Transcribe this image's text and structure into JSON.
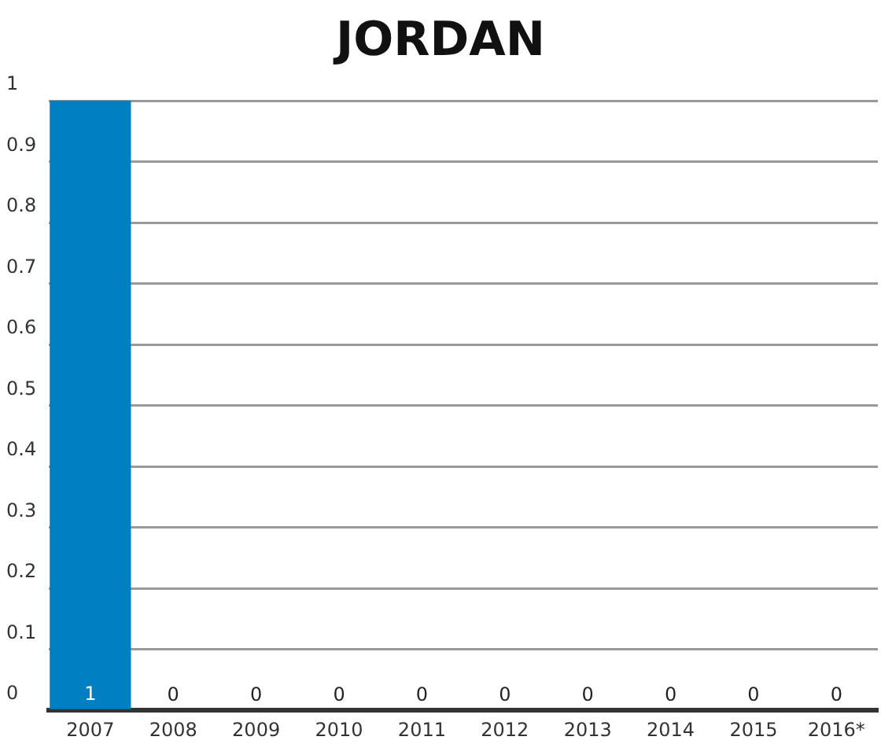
{
  "chart_data": {
    "type": "bar",
    "title": "JORDAN",
    "categories": [
      "2007",
      "2008",
      "2009",
      "2010",
      "2011",
      "2012",
      "2013",
      "2014",
      "2015",
      "2016*"
    ],
    "values": [
      1,
      0,
      0,
      0,
      0,
      0,
      0,
      0,
      0,
      0
    ],
    "color": "#0080c3",
    "ylim": [
      0,
      1
    ],
    "yticks": [
      0,
      0.1,
      0.2,
      0.3,
      0.4,
      0.5,
      0.6,
      0.7,
      0.8,
      0.9,
      1
    ],
    "grid": "y",
    "data_labels": true
  }
}
